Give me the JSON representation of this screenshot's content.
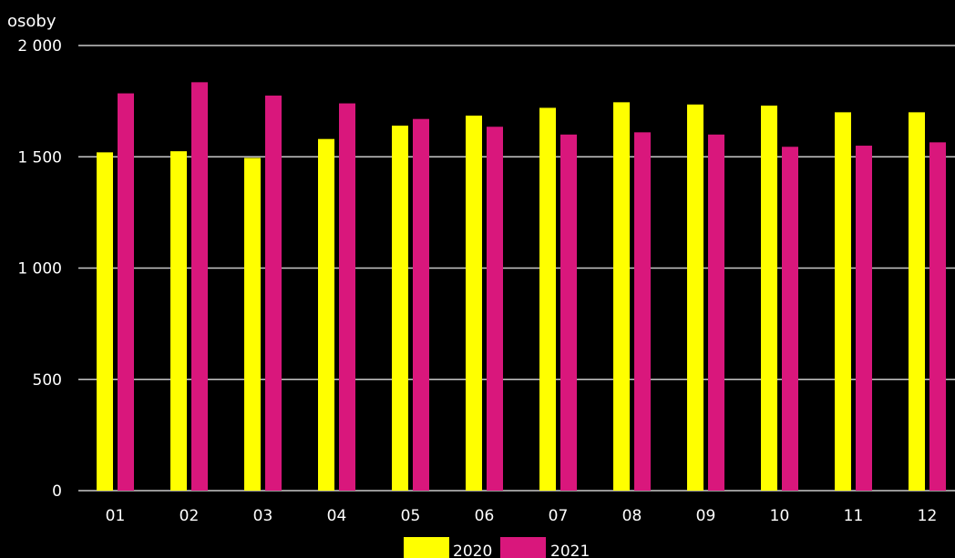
{
  "chart_data": {
    "type": "bar",
    "title": "",
    "xlabel": "",
    "ylabel": "osoby",
    "ylim": [
      0,
      2000
    ],
    "yticks": [
      0,
      500,
      1000,
      1500,
      2000
    ],
    "ytick_labels": [
      "0",
      "500",
      "1 000",
      "1 500",
      "2 000"
    ],
    "grid": true,
    "legend_position": "bottom-center",
    "categories": [
      "01",
      "02",
      "03",
      "04",
      "05",
      "06",
      "07",
      "08",
      "09",
      "10",
      "11",
      "12"
    ],
    "series": [
      {
        "name": "2020",
        "color": "#ffff00",
        "values": [
          1520,
          1525,
          1495,
          1580,
          1640,
          1685,
          1720,
          1745,
          1735,
          1730,
          1700,
          1700
        ]
      },
      {
        "name": "2021",
        "color": "#d9177c",
        "values": [
          1785,
          1835,
          1775,
          1740,
          1670,
          1635,
          1600,
          1610,
          1600,
          1545,
          1550,
          1565
        ]
      }
    ]
  }
}
